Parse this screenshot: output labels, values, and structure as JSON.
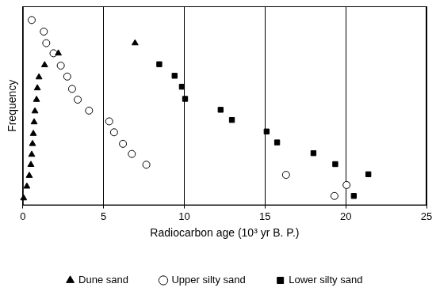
{
  "chart_data": {
    "type": "scatter",
    "x_label": "Radiocarbon age (10³ yr B. P.)",
    "y_label": "Frequency",
    "xlim": [
      0,
      25
    ],
    "xticks": [
      0,
      5,
      10,
      15,
      20,
      25
    ],
    "ylim": [
      0,
      100
    ],
    "tick_labels": "x",
    "grid": "x",
    "legend": "bottom",
    "series": [
      {
        "name": "Dune sand",
        "color": "#000000",
        "marker": "triangle",
        "x": [
          0.05,
          0.25,
          0.4,
          0.5,
          0.55,
          0.6,
          0.65,
          0.7,
          0.75,
          0.85,
          0.9,
          1.0,
          1.35,
          2.2,
          6.95
        ],
        "values": [
          3.6,
          9.5,
          14.9,
          20.4,
          25.5,
          30.9,
          36.0,
          41.8,
          47.3,
          53.1,
          58.9,
          64.4,
          70.5,
          76.4,
          81.5
        ]
      },
      {
        "name": "Upper silty sand",
        "color": "#000000",
        "marker": "circle-open",
        "x": [
          0.55,
          1.3,
          1.45,
          1.9,
          2.35,
          2.75,
          3.05,
          3.4,
          4.1,
          5.35,
          5.65,
          6.2,
          6.75,
          7.65,
          16.3,
          20.05,
          19.3
        ],
        "values": [
          93.1,
          87.3,
          81.5,
          76.4,
          70.2,
          64.7,
          58.5,
          53.1,
          47.6,
          42.2,
          36.7,
          30.9,
          25.8,
          20.4,
          15.3,
          10.2,
          4.7
        ]
      },
      {
        "name": "Lower silty sand",
        "color": "#000000",
        "marker": "square",
        "x": [
          8.45,
          9.4,
          9.85,
          10.05,
          12.25,
          12.95,
          15.1,
          15.75,
          18.0,
          19.35,
          21.4,
          20.05,
          20.5
        ],
        "values": [
          70.9,
          65.1,
          59.6,
          53.5,
          48.0,
          42.9,
          37.1,
          31.6,
          26.2,
          20.7,
          15.6,
          10.2,
          4.7
        ]
      }
    ]
  }
}
